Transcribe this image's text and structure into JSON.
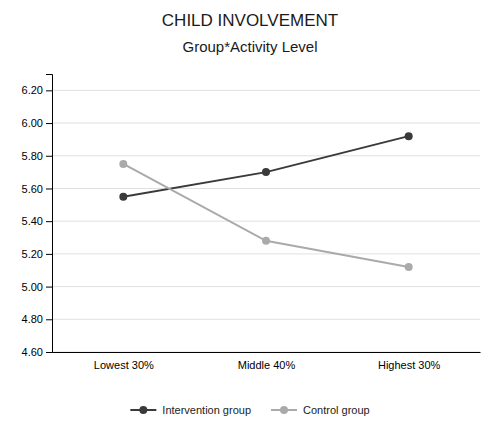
{
  "chart_data": {
    "type": "line",
    "title": "CHILD INVOLVEMENT",
    "subtitle": "Group*Activity Level",
    "categories": [
      "Lowest 30%",
      "Middle 40%",
      "Highest 30%"
    ],
    "series": [
      {
        "name": "Intervention group",
        "color": "#3a3a3a",
        "marker": "circle",
        "values": [
          5.55,
          5.7,
          5.92
        ]
      },
      {
        "name": "Control group",
        "color": "#aaaaaa",
        "marker": "circle",
        "values": [
          5.75,
          5.28,
          5.12
        ]
      }
    ],
    "ylim": [
      4.6,
      6.3
    ],
    "yticks": [
      {
        "value": 4.6,
        "label": "4.60"
      },
      {
        "value": 4.8,
        "label": "4.80"
      },
      {
        "value": 5.0,
        "label": "5.00"
      },
      {
        "value": 5.2,
        "label": "5.20"
      },
      {
        "value": 5.4,
        "label": "5.40"
      },
      {
        "value": 5.6,
        "label": "5.60"
      },
      {
        "value": 5.8,
        "label": "5.80"
      },
      {
        "value": 6.0,
        "label": "6.00"
      },
      {
        "value": 6.2,
        "label": "6.20"
      }
    ],
    "grid": true,
    "legend": "bottom"
  }
}
